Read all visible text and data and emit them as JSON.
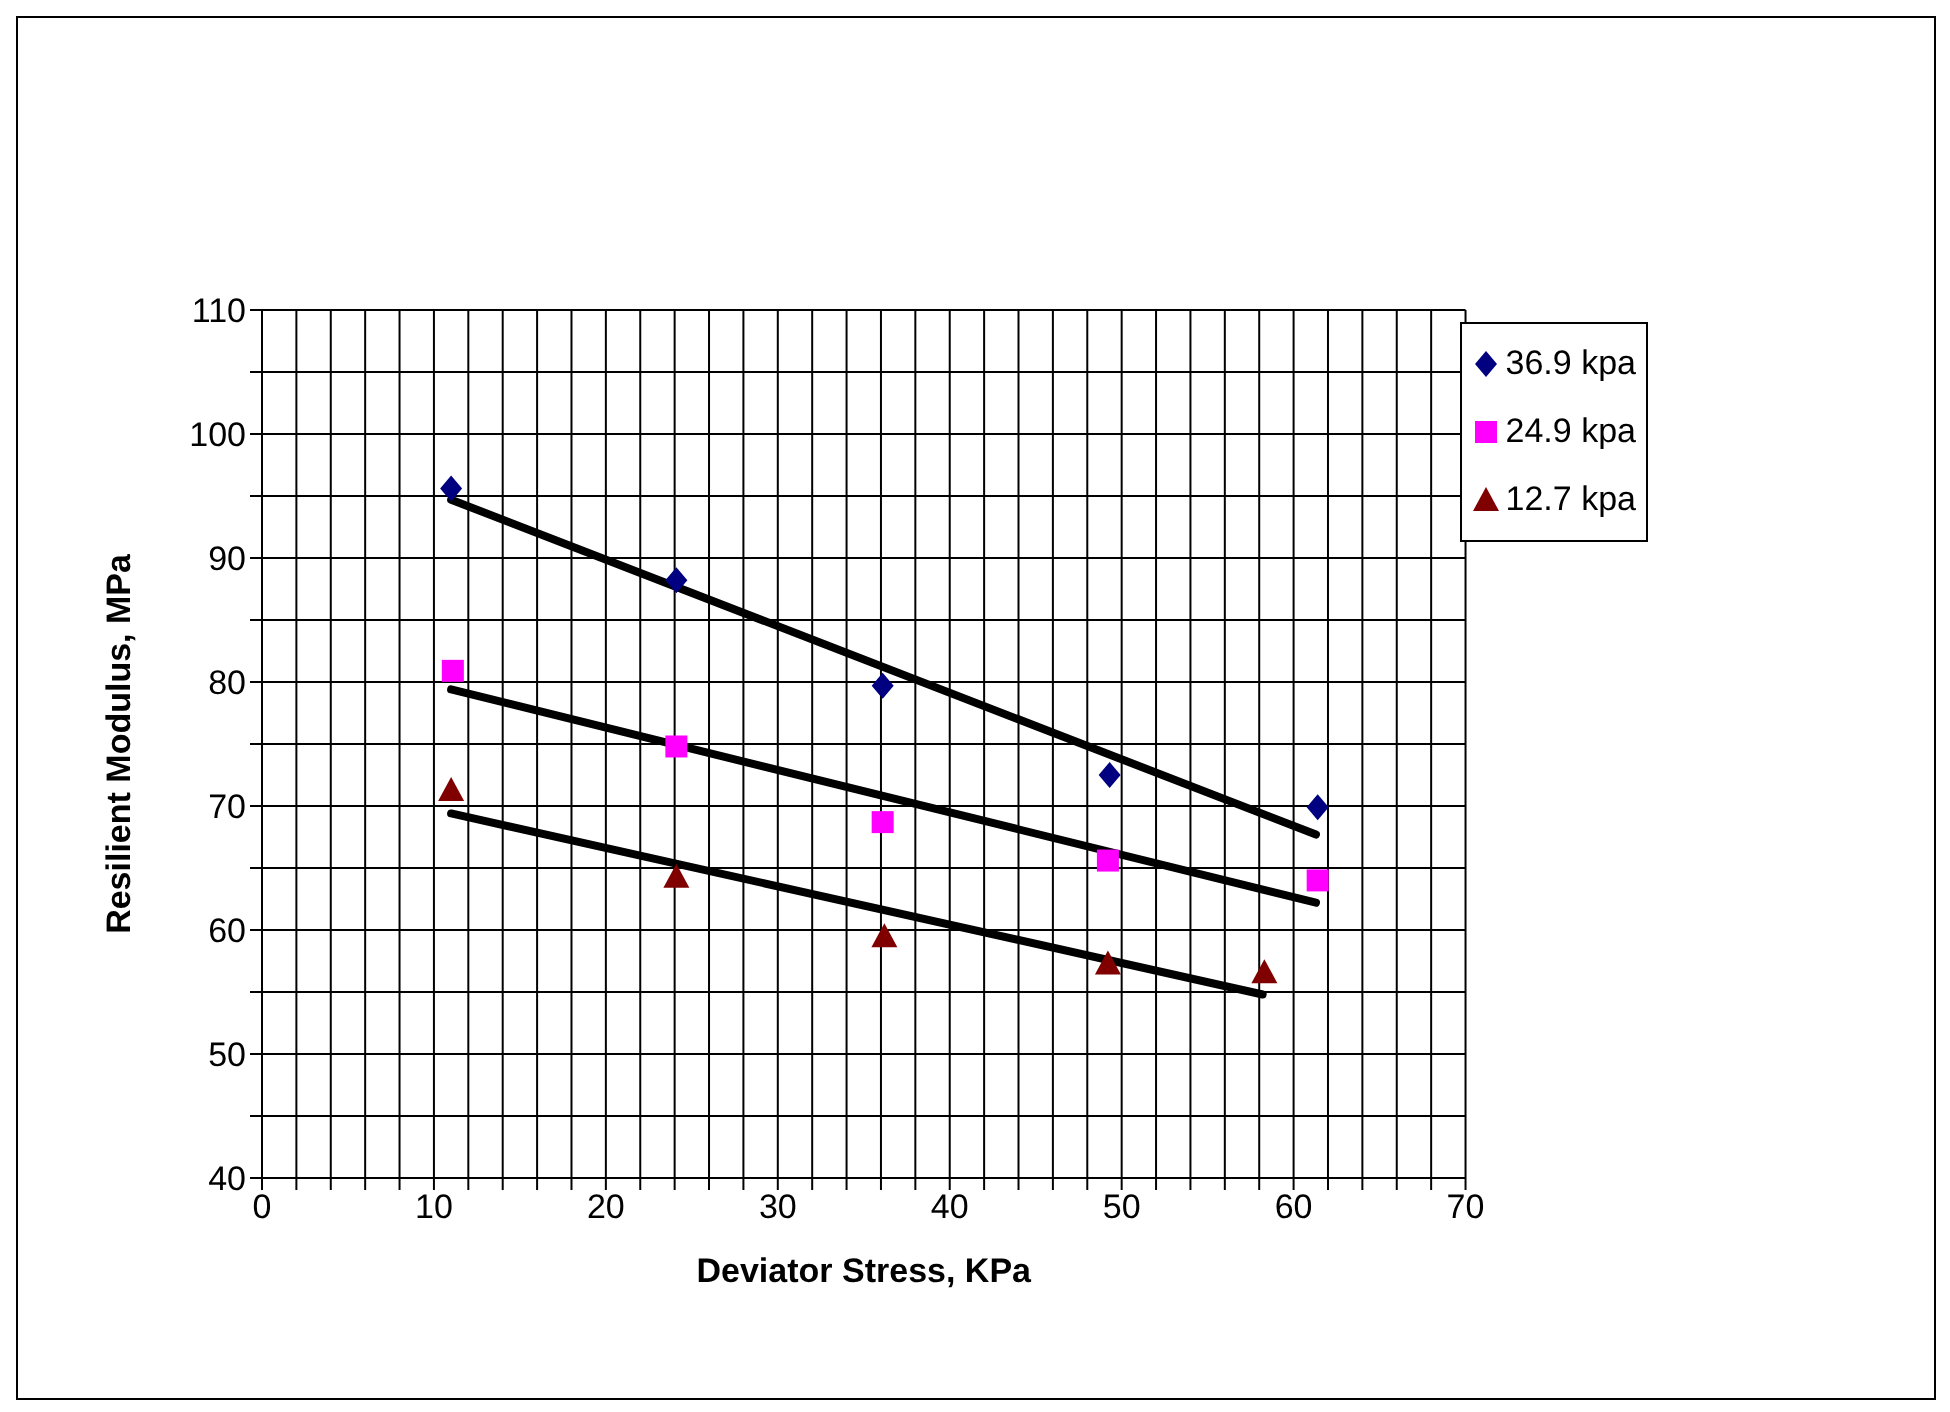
{
  "chart_data": {
    "type": "scatter",
    "xlabel": "Deviator Stress, KPa",
    "ylabel": "Resilient Modulus, MPa",
    "xlim": [
      0,
      70
    ],
    "xticks": [
      0,
      {
        "value": 2,
        "label": null
      },
      {
        "value": 4,
        "label": null
      },
      {
        "value": 6,
        "label": null
      },
      {
        "value": 8,
        "label": null
      },
      10,
      {
        "value": 12,
        "label": null
      },
      {
        "value": 14,
        "label": null
      },
      {
        "value": 16,
        "label": null
      },
      {
        "value": 18,
        "label": null
      },
      20,
      {
        "value": 22,
        "label": null
      },
      {
        "value": 24,
        "label": null
      },
      {
        "value": 26,
        "label": null
      },
      {
        "value": 28,
        "label": null
      },
      30,
      {
        "value": 32,
        "label": null
      },
      {
        "value": 34,
        "label": null
      },
      {
        "value": 36,
        "label": null
      },
      {
        "value": 38,
        "label": null
      },
      40,
      {
        "value": 42,
        "label": null
      },
      {
        "value": 44,
        "label": null
      },
      {
        "value": 46,
        "label": null
      },
      {
        "value": 48,
        "label": null
      },
      50,
      {
        "value": 52,
        "label": null
      },
      {
        "value": 54,
        "label": null
      },
      {
        "value": 56,
        "label": null
      },
      {
        "value": 58,
        "label": null
      },
      60,
      {
        "value": 62,
        "label": null
      },
      {
        "value": 64,
        "label": null
      },
      {
        "value": 66,
        "label": null
      },
      {
        "value": 68,
        "label": null
      },
      70
    ],
    "ylim": [
      40,
      110
    ],
    "yticks": [
      40,
      {
        "value": 45,
        "label": null
      },
      50,
      {
        "value": 55,
        "label": null
      },
      60,
      {
        "value": 65,
        "label": null
      },
      70,
      {
        "value": 75,
        "label": null
      },
      80,
      {
        "value": 85,
        "label": null
      },
      90,
      {
        "value": 95,
        "label": null
      },
      100,
      {
        "value": 105,
        "label": null
      },
      110
    ],
    "grid": true,
    "legend": "top right",
    "series": [
      {
        "name": "36.9 kpa",
        "color": "#000080",
        "marker": "diamond",
        "x": [
          11,
          24.1,
          36.1,
          49.3,
          61.4
        ],
        "values": [
          95.6,
          88.2,
          79.7,
          72.5,
          69.9
        ]
      },
      {
        "name": "24.9 kpa",
        "color": "#ff00ff",
        "marker": "square",
        "x": [
          11.1,
          24.1,
          36.1,
          49.2,
          61.4
        ],
        "values": [
          80.9,
          74.8,
          68.7,
          65.6,
          64.0
        ]
      },
      {
        "name": "12.7 kpa",
        "color": "#800000",
        "marker": "triangle",
        "x": [
          11,
          24.1,
          36.2,
          49.2,
          58.3
        ],
        "values": [
          71.3,
          64.3,
          59.5,
          57.3,
          56.6
        ]
      },
      {
        "type": "line",
        "color": "#000000",
        "marker": "none",
        "x": [
          11,
          61.3
        ],
        "values": [
          94.7,
          67.7
        ]
      },
      {
        "type": "line",
        "color": "#000000",
        "marker": "none",
        "x": [
          11,
          61.3
        ],
        "values": [
          79.4,
          62.2
        ]
      },
      {
        "type": "line",
        "color": "#000000",
        "marker": "none",
        "x": [
          11,
          58.2
        ],
        "values": [
          69.4,
          54.8
        ]
      }
    ]
  }
}
